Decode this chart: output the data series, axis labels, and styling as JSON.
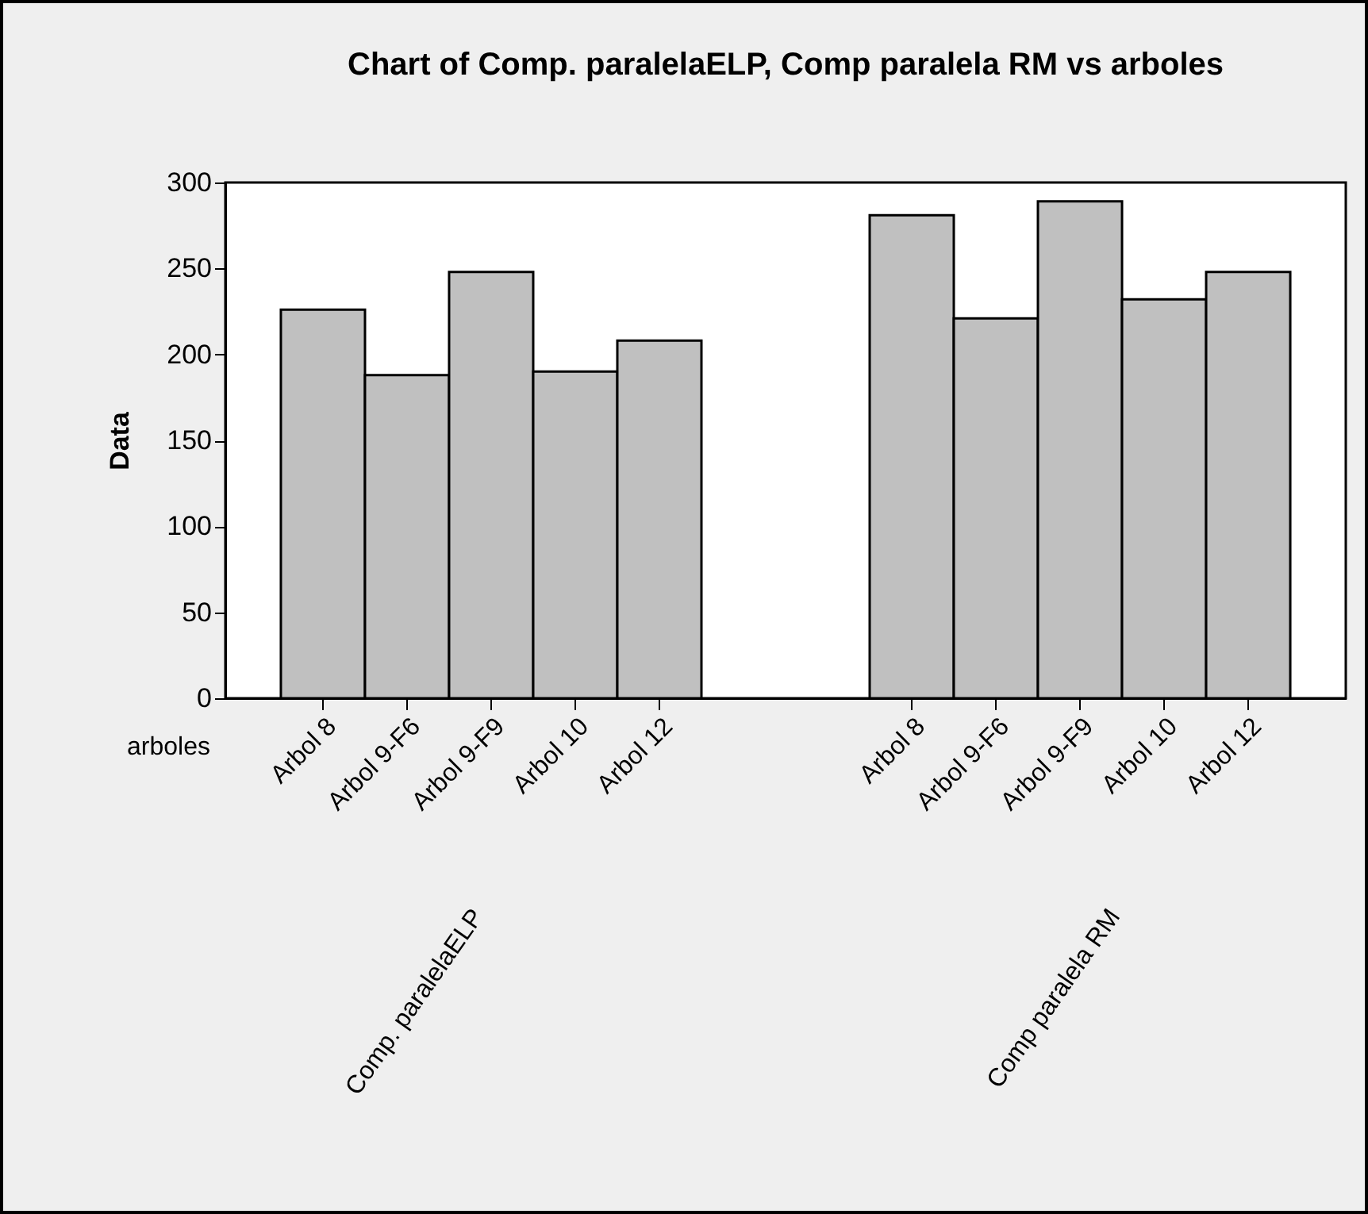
{
  "chart_data": {
    "type": "bar",
    "title": "Chart of Comp. paralelaELP, Comp paralela RM vs arboles",
    "xlabel": "arboles",
    "ylabel": "Data",
    "categories": [
      "Arbol 8",
      "Arbol 9-F6",
      "Arbol 9-F9",
      "Arbol 10",
      "Arbol 12",
      null,
      null,
      "Arbol 8",
      "Arbol 9-F6",
      "Arbol 9-F9",
      "Arbol 10",
      "Arbol 12"
    ],
    "values": [
      226,
      188,
      248,
      190,
      208,
      null,
      null,
      281,
      221,
      289,
      232,
      248
    ],
    "color": "#c0c0c0",
    "annotations": [
      "Comp. paralelaELP",
      "Comp paralela RM"
    ],
    "ylim": [
      0,
      300
    ],
    "yticks": [
      0,
      50,
      100,
      150,
      200,
      250,
      300
    ],
    "grid": false
  }
}
